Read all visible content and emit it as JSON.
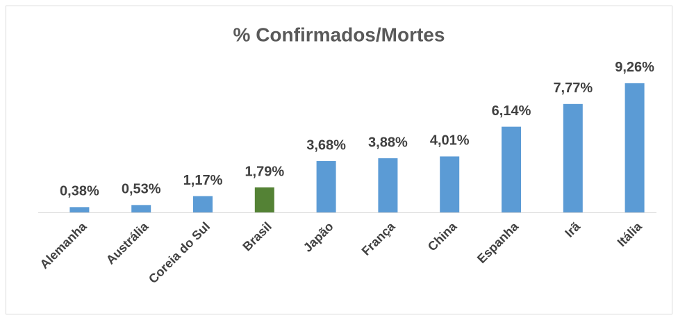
{
  "chart_data": {
    "type": "bar",
    "title": "% Confirmados/Mortes",
    "categories": [
      "Alemanha",
      "Austrália",
      "Coreia do Sul",
      "Brasil",
      "Japão",
      "França",
      "China",
      "Espanha",
      "Irã",
      "Itália"
    ],
    "values": [
      0.38,
      0.53,
      1.17,
      1.79,
      3.68,
      3.88,
      4.01,
      6.14,
      7.77,
      9.26
    ],
    "value_labels": [
      "0,38%",
      "0,53%",
      "1,17%",
      "1,79%",
      "3,68%",
      "3,88%",
      "4,01%",
      "6,14%",
      "7,77%",
      "9,26%"
    ],
    "colors": [
      "#5b9bd5",
      "#5b9bd5",
      "#5b9bd5",
      "#548235",
      "#5b9bd5",
      "#5b9bd5",
      "#5b9bd5",
      "#5b9bd5",
      "#5b9bd5",
      "#5b9bd5"
    ]
  }
}
